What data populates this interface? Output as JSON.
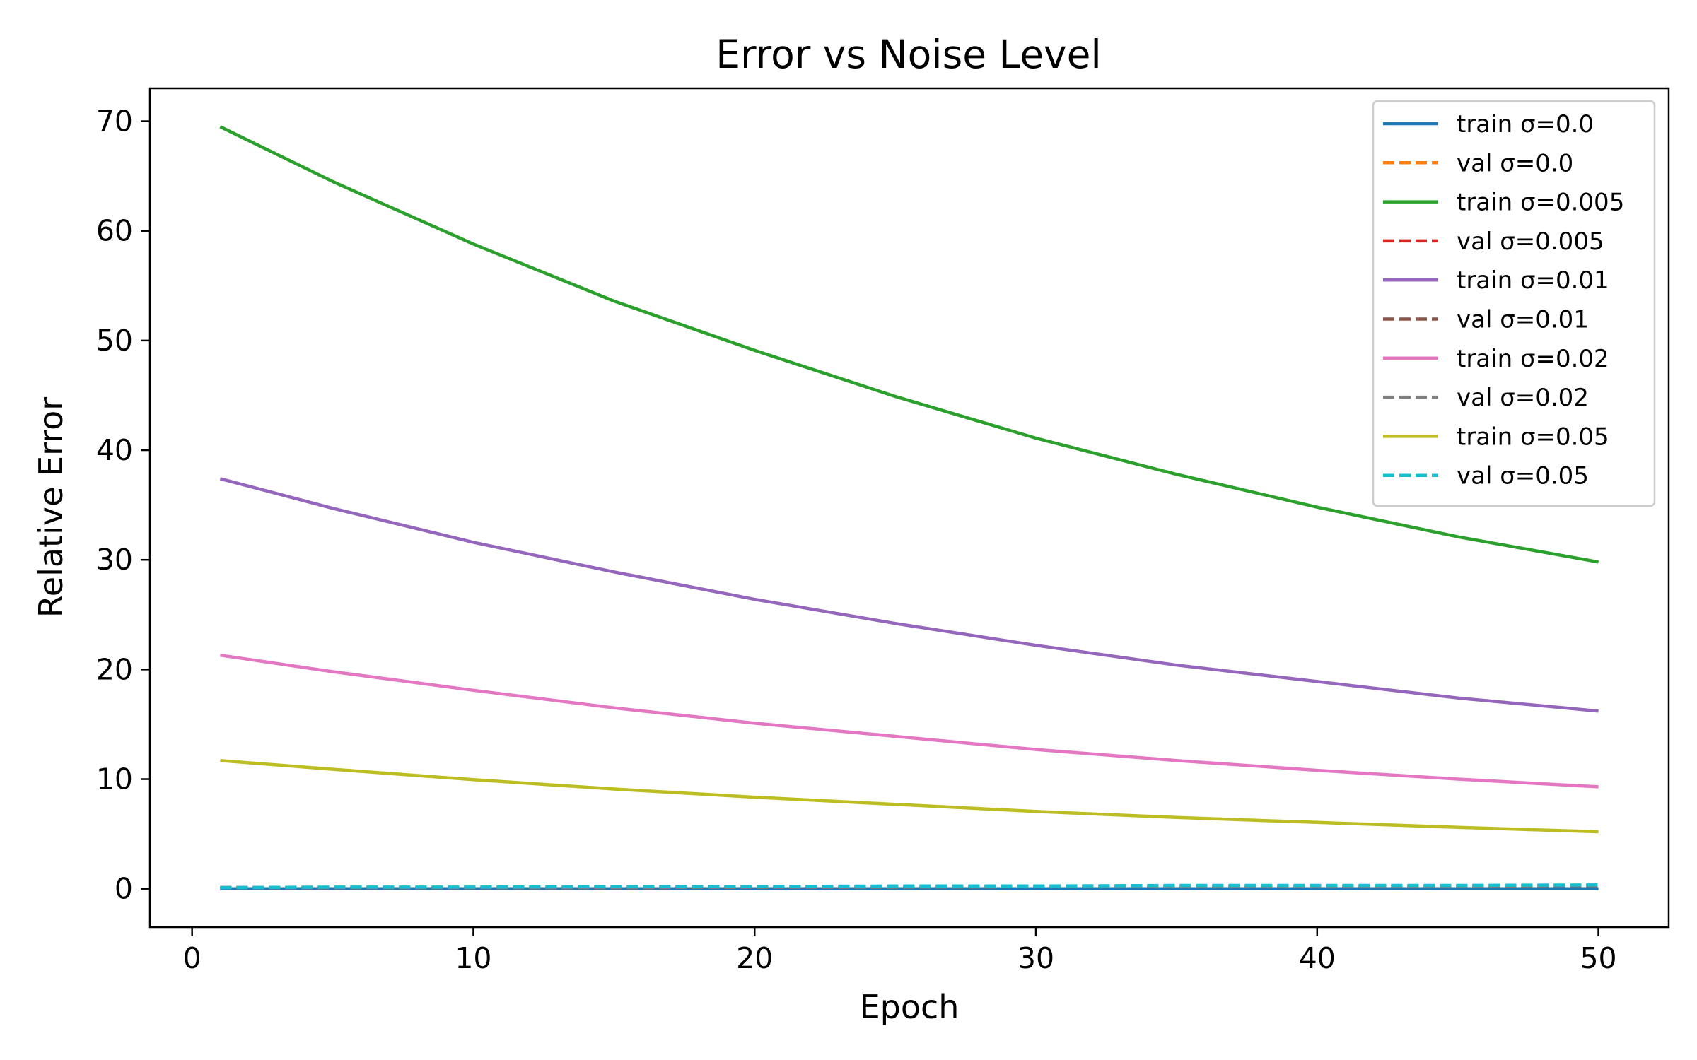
{
  "chart_data": {
    "type": "line",
    "title": "Error vs Noise Level",
    "xlabel": "Epoch",
    "ylabel": "Relative Error",
    "xlim": [
      -1.5,
      52.5
    ],
    "ylim": [
      -3.5,
      73
    ],
    "xticks": [
      0,
      10,
      20,
      30,
      40,
      50
    ],
    "yticks": [
      0,
      10,
      20,
      30,
      40,
      50,
      60,
      70
    ],
    "grid": false,
    "legend_position": "top-right",
    "x": [
      1,
      5,
      10,
      15,
      20,
      25,
      30,
      35,
      40,
      45,
      50
    ],
    "series": [
      {
        "name": "train σ=0.0",
        "color": "#1f77b4",
        "dash": "solid",
        "values": [
          0.0,
          0.0,
          0.0,
          0.0,
          0.0,
          0.0,
          0.0,
          0.0,
          0.0,
          0.0,
          0.0
        ]
      },
      {
        "name": "val σ=0.0",
        "color": "#ff7f0e",
        "dash": "dashed",
        "values": [
          0.1,
          0.1,
          0.1,
          0.1,
          0.15,
          0.15,
          0.2,
          0.2,
          0.2,
          0.25,
          0.3
        ]
      },
      {
        "name": "train σ=0.005",
        "color": "#2ca02c",
        "dash": "solid",
        "values": [
          69.5,
          64.5,
          58.8,
          53.6,
          49.1,
          44.9,
          41.1,
          37.8,
          34.8,
          32.1,
          29.8
        ]
      },
      {
        "name": "val σ=0.005",
        "color": "#d62728",
        "dash": "dashed",
        "values": [
          0.1,
          0.1,
          0.1,
          0.1,
          0.15,
          0.15,
          0.2,
          0.2,
          0.2,
          0.25,
          0.3
        ]
      },
      {
        "name": "train σ=0.01",
        "color": "#9467bd",
        "dash": "solid",
        "values": [
          37.4,
          34.7,
          31.6,
          28.9,
          26.4,
          24.2,
          22.2,
          20.4,
          18.9,
          17.4,
          16.2
        ]
      },
      {
        "name": "val σ=0.01",
        "color": "#8c564b",
        "dash": "dashed",
        "values": [
          0.1,
          0.1,
          0.1,
          0.1,
          0.15,
          0.15,
          0.2,
          0.2,
          0.2,
          0.25,
          0.3
        ]
      },
      {
        "name": "train σ=0.02",
        "color": "#e377c2",
        "dash": "solid",
        "values": [
          21.3,
          19.8,
          18.1,
          16.5,
          15.1,
          13.9,
          12.7,
          11.7,
          10.8,
          10.0,
          9.3
        ]
      },
      {
        "name": "val σ=0.02",
        "color": "#7f7f7f",
        "dash": "dashed",
        "values": [
          0.1,
          0.1,
          0.1,
          0.1,
          0.15,
          0.15,
          0.2,
          0.2,
          0.2,
          0.25,
          0.3
        ]
      },
      {
        "name": "train σ=0.05",
        "color": "#bcbd22",
        "dash": "solid",
        "values": [
          11.7,
          10.9,
          9.95,
          9.1,
          8.35,
          7.7,
          7.05,
          6.5,
          6.05,
          5.6,
          5.2
        ]
      },
      {
        "name": "val σ=0.05",
        "color": "#17becf",
        "dash": "dashed",
        "values": [
          0.1,
          0.15,
          0.15,
          0.2,
          0.2,
          0.25,
          0.25,
          0.3,
          0.3,
          0.3,
          0.35
        ]
      }
    ]
  }
}
